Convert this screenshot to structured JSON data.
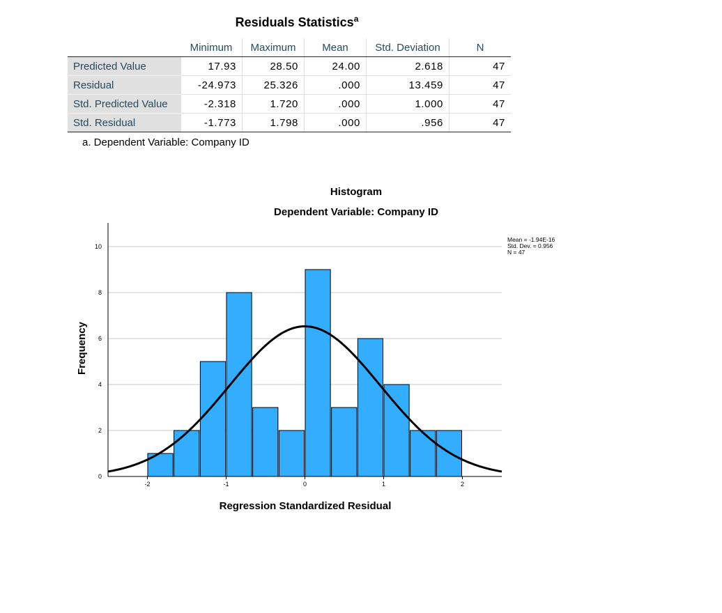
{
  "table": {
    "title": "Residuals Statistics",
    "title_sup": "a",
    "columns": [
      "",
      "Minimum",
      "Maximum",
      "Mean",
      "Std. Deviation",
      "N"
    ],
    "rows": [
      {
        "label": "Predicted Value",
        "min": "17.93",
        "max": "28.50",
        "mean": "24.00",
        "sd": "2.618",
        "n": "47"
      },
      {
        "label": "Residual",
        "min": "-24.973",
        "max": "25.326",
        "mean": ".000",
        "sd": "13.459",
        "n": "47"
      },
      {
        "label": "Std. Predicted Value",
        "min": "-2.318",
        "max": "1.720",
        "mean": ".000",
        "sd": "1.000",
        "n": "47"
      },
      {
        "label": "Std. Residual",
        "min": "-1.773",
        "max": "1.798",
        "mean": ".000",
        "sd": ".956",
        "n": "47"
      }
    ],
    "footnote": "a. Dependent Variable: Company ID"
  },
  "chart_data": {
    "type": "bar",
    "title": "Histogram",
    "subtitle": "Dependent Variable: Company ID",
    "xlabel": "Regression Standardized Residual",
    "ylabel": "Frequency",
    "xlim": [
      -2.5,
      2.5
    ],
    "ylim": [
      0,
      10.0
    ],
    "xticks": [
      -2,
      -1,
      0,
      1,
      2
    ],
    "yticks": [
      0,
      2,
      4,
      6,
      8,
      10
    ],
    "bin_width": 0.333,
    "bins": [
      {
        "start": -2.0,
        "end": -1.667,
        "count": 1
      },
      {
        "start": -1.667,
        "end": -1.333,
        "count": 2
      },
      {
        "start": -1.333,
        "end": -1.0,
        "count": 5
      },
      {
        "start": -1.0,
        "end": -0.667,
        "count": 8
      },
      {
        "start": -0.667,
        "end": -0.333,
        "count": 3
      },
      {
        "start": -0.333,
        "end": 0.0,
        "count": 2
      },
      {
        "start": 0.0,
        "end": 0.333,
        "count": 9
      },
      {
        "start": 0.333,
        "end": 0.667,
        "count": 3
      },
      {
        "start": 0.667,
        "end": 1.0,
        "count": 6
      },
      {
        "start": 1.0,
        "end": 1.333,
        "count": 4
      },
      {
        "start": 1.333,
        "end": 1.667,
        "count": 2
      },
      {
        "start": 1.667,
        "end": 2.0,
        "count": 2
      }
    ],
    "normal_curve": {
      "mean": 0.0,
      "sd": 0.956,
      "n": 47
    },
    "legend": [
      "Mean = -1.94E-16",
      "Std. Dev. = 0.956",
      "N = 47"
    ],
    "legend_position": "top-right",
    "grid": true,
    "colors": {
      "bar": "#33adff",
      "bar_stroke": "#000000",
      "curve": "#000000",
      "grid": "#c8c8c8"
    }
  }
}
